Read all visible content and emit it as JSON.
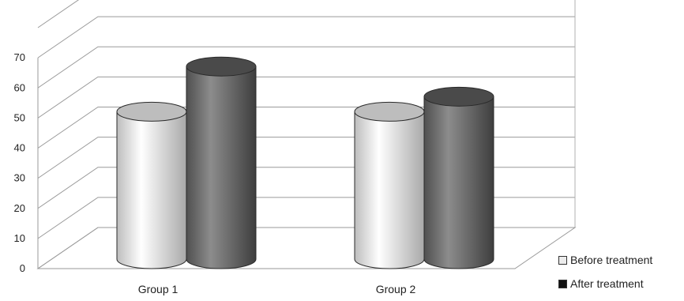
{
  "chart_data": {
    "type": "bar",
    "style": "3d-cylinder",
    "categories": [
      "Group 1",
      "Group 2"
    ],
    "series": [
      {
        "name": "Before treatment",
        "values": [
          50,
          50
        ],
        "color": "#d8d8d8"
      },
      {
        "name": "After treatment",
        "values": [
          65,
          55
        ],
        "color": "#6a6a6a"
      }
    ],
    "ylim": [
      0,
      80
    ],
    "yticks": [
      "0",
      "10",
      "20",
      "30",
      "40",
      "50",
      "60",
      "70"
    ],
    "grid": true,
    "legend_position": "bottom-right",
    "title": "",
    "xlabel": "",
    "ylabel": ""
  }
}
